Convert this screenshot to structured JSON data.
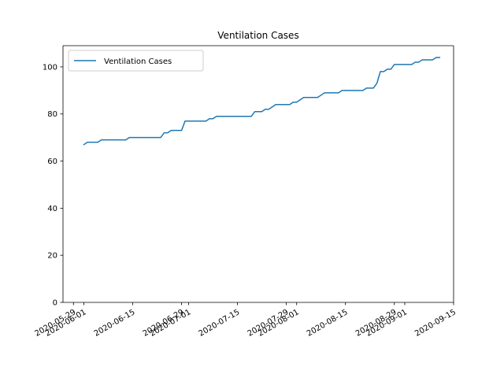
{
  "chart_data": {
    "type": "line",
    "title": "Ventilation Cases",
    "xlabel": "",
    "ylabel": "",
    "x_type": "date",
    "xlim": [
      "2020-05-26",
      "2020-09-15"
    ],
    "ylim": [
      0,
      109
    ],
    "x_ticks": [
      "2020-05-29",
      "2020-06-01",
      "2020-06-15",
      "2020-06-29",
      "2020-07-01",
      "2020-07-15",
      "2020-07-29",
      "2020-08-01",
      "2020-08-15",
      "2020-08-29",
      "2020-09-01",
      "2020-09-15"
    ],
    "y_ticks": [
      0,
      20,
      40,
      60,
      80,
      100
    ],
    "grid": false,
    "legend": {
      "position": "top-left",
      "entries": [
        "Ventilation Cases"
      ]
    },
    "series": [
      {
        "name": "Ventilation Cases",
        "color": "#1f77b4",
        "points": [
          [
            "2020-06-01",
            67
          ],
          [
            "2020-06-02",
            68
          ],
          [
            "2020-06-05",
            68
          ],
          [
            "2020-06-06",
            69
          ],
          [
            "2020-06-13",
            69
          ],
          [
            "2020-06-14",
            70
          ],
          [
            "2020-06-23",
            70
          ],
          [
            "2020-06-24",
            72
          ],
          [
            "2020-06-25",
            72
          ],
          [
            "2020-06-26",
            73
          ],
          [
            "2020-06-29",
            73
          ],
          [
            "2020-06-30",
            77
          ],
          [
            "2020-07-06",
            77
          ],
          [
            "2020-07-07",
            78
          ],
          [
            "2020-07-08",
            78
          ],
          [
            "2020-07-09",
            79
          ],
          [
            "2020-07-19",
            79
          ],
          [
            "2020-07-20",
            81
          ],
          [
            "2020-07-22",
            81
          ],
          [
            "2020-07-23",
            82
          ],
          [
            "2020-07-24",
            82
          ],
          [
            "2020-07-25",
            83
          ],
          [
            "2020-07-26",
            84
          ],
          [
            "2020-07-30",
            84
          ],
          [
            "2020-07-31",
            85
          ],
          [
            "2020-08-01",
            85
          ],
          [
            "2020-08-02",
            86
          ],
          [
            "2020-08-03",
            87
          ],
          [
            "2020-08-07",
            87
          ],
          [
            "2020-08-08",
            88
          ],
          [
            "2020-08-09",
            89
          ],
          [
            "2020-08-13",
            89
          ],
          [
            "2020-08-14",
            90
          ],
          [
            "2020-08-20",
            90
          ],
          [
            "2020-08-21",
            91
          ],
          [
            "2020-08-23",
            91
          ],
          [
            "2020-08-24",
            93
          ],
          [
            "2020-08-25",
            98
          ],
          [
            "2020-08-26",
            98
          ],
          [
            "2020-08-27",
            99
          ],
          [
            "2020-08-28",
            99
          ],
          [
            "2020-08-29",
            101
          ],
          [
            "2020-09-03",
            101
          ],
          [
            "2020-09-04",
            102
          ],
          [
            "2020-09-05",
            102
          ],
          [
            "2020-09-06",
            103
          ],
          [
            "2020-09-09",
            103
          ],
          [
            "2020-09-10",
            104
          ],
          [
            "2020-09-11",
            104
          ]
        ]
      }
    ]
  }
}
